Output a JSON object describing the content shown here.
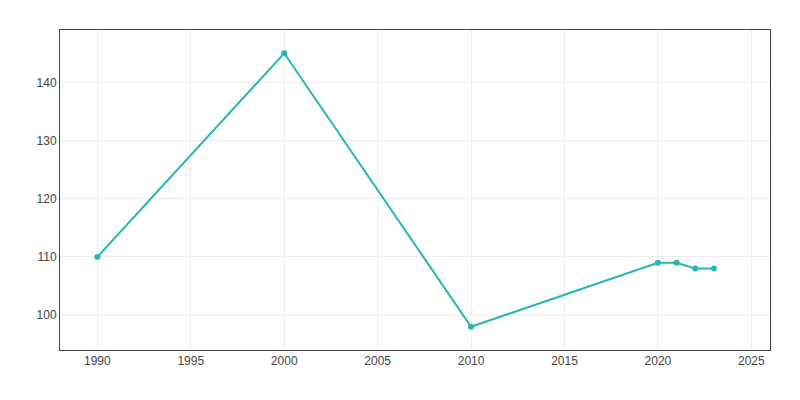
{
  "chart_data": {
    "type": "line",
    "x": [
      1990,
      2000,
      2010,
      2020,
      2021,
      2022,
      2023
    ],
    "values": [
      110,
      145,
      98,
      109,
      109,
      108,
      108
    ],
    "color": "#2ab5b5",
    "marker": "circle",
    "xlim": [
      1988,
      2026
    ],
    "ylim": [
      94,
      149
    ],
    "xticks": [
      1990,
      1995,
      2000,
      2005,
      2010,
      2015,
      2020,
      2025
    ],
    "yticks": [
      100,
      110,
      120,
      130,
      140
    ],
    "grid": true
  }
}
